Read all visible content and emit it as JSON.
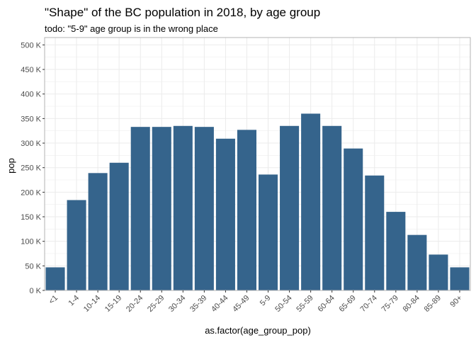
{
  "chart_data": {
    "type": "bar",
    "title": "\"Shape\" of the BC population in 2018, by age group",
    "subtitle": "todo: \"5-9\" age group is in the wrong place",
    "xlabel": "as.factor(age_group_pop)",
    "ylabel": "pop",
    "categories": [
      "<1",
      "1-4",
      "10-14",
      "15-19",
      "20-24",
      "25-29",
      "30-34",
      "35-39",
      "40-44",
      "45-49",
      "5-9",
      "50-54",
      "55-59",
      "60-64",
      "65-69",
      "70-74",
      "75-79",
      "80-84",
      "85-89",
      "90+"
    ],
    "values": [
      47000,
      184000,
      239000,
      260000,
      333000,
      333000,
      335000,
      333000,
      309000,
      327000,
      236000,
      335000,
      360000,
      335000,
      289000,
      234000,
      160000,
      113000,
      73000,
      47000
    ],
    "ylim": [
      0,
      515000
    ],
    "yticks": [
      0,
      50000,
      100000,
      150000,
      200000,
      250000,
      300000,
      350000,
      400000,
      450000,
      500000
    ],
    "ytick_labels": [
      "0 K",
      "50 K",
      "100 K",
      "150 K",
      "200 K",
      "250 K",
      "300 K",
      "350 K",
      "400 K",
      "450 K",
      "500 K"
    ],
    "grid": true,
    "bar_color": "#35648c",
    "grid_color": "#ebebeb",
    "frame_color": "#b3b3b3"
  }
}
